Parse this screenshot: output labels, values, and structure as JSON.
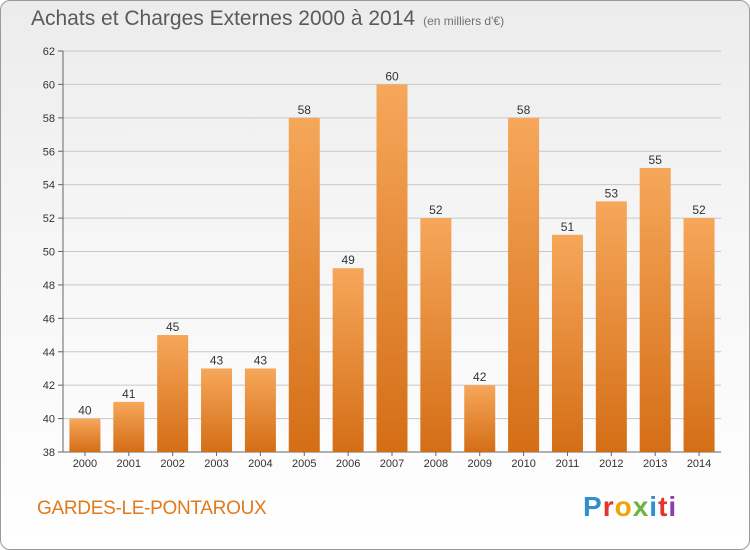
{
  "header": {
    "title": "Achats et Charges Externes 2000 à 2014",
    "subtitle": "(en milliers d'€)"
  },
  "footer": {
    "commune": "GARDES-LE-PONTAROUX",
    "logo": {
      "P": "P",
      "r": "r",
      "o": "o",
      "x": "x",
      "i": "i",
      "t": "t",
      "i2": "i"
    }
  },
  "colors": {
    "bar_light": "#f6a75a",
    "bar_dark": "#d46e16",
    "grid": "#c8c8c8",
    "accent": "#e07a1c"
  },
  "chart_data": {
    "type": "bar",
    "categories": [
      "2000",
      "2001",
      "2002",
      "2003",
      "2004",
      "2005",
      "2006",
      "2007",
      "2008",
      "2009",
      "2010",
      "2011",
      "2012",
      "2013",
      "2014"
    ],
    "values": [
      40,
      41,
      45,
      43,
      43,
      58,
      49,
      60,
      52,
      42,
      58,
      51,
      53,
      55,
      52
    ],
    "title": "Achats et Charges Externes 2000 à 2014",
    "subtitle": "(en milliers d'€)",
    "xlabel": "",
    "ylabel": "",
    "ylim": [
      38,
      62
    ],
    "yticks": [
      38,
      40,
      42,
      44,
      46,
      48,
      50,
      52,
      54,
      56,
      58,
      60,
      62
    ],
    "grid": true,
    "data_labels": true
  }
}
